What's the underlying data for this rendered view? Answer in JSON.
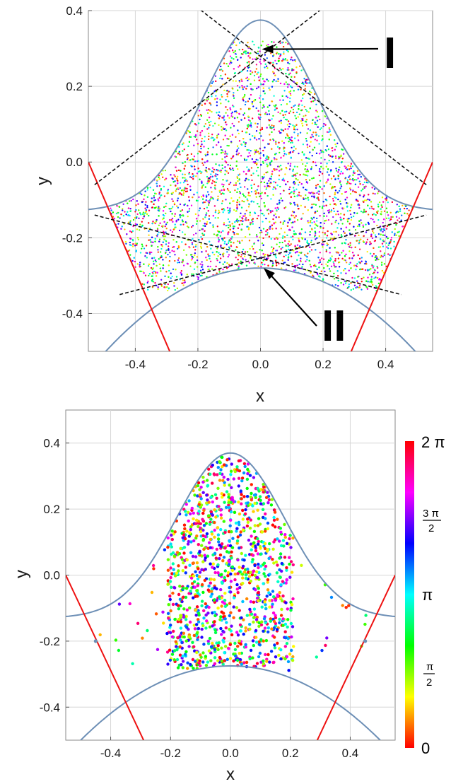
{
  "chart_data": [
    {
      "type": "scatter",
      "title": "",
      "xlabel": "x",
      "ylabel": "y",
      "xlim": [
        -0.55,
        0.55
      ],
      "ylim": [
        -0.5,
        0.4
      ],
      "grid": true,
      "xticks": [
        "-0.4",
        "-0.2",
        "0.0",
        "0.2",
        "0.4"
      ],
      "yticks": [
        "-0.4",
        "-0.2",
        "0.0",
        "0.2",
        "0.4"
      ],
      "xtick_values": [
        -0.4,
        -0.2,
        0.0,
        0.2,
        0.4
      ],
      "ytick_values": [
        -0.4,
        -0.2,
        0.0,
        0.2,
        0.4
      ],
      "point_fill": "uniform dense cloud, hue = phase 0..2π",
      "boundary_upper": {
        "peak": [
          0.0,
          0.375
        ],
        "description": "bell-shaped blue curve"
      },
      "boundary_lower": {
        "trough": [
          0.0,
          -0.28
        ],
        "description": "inverted bell blue curve"
      },
      "red_lines": [
        {
          "points": [
            [
              -0.55,
              0.0
            ],
            [
              -0.29,
              -0.5
            ]
          ]
        },
        {
          "points": [
            [
              0.55,
              0.0
            ],
            [
              0.29,
              -0.5
            ]
          ]
        }
      ],
      "dashed_lines": [
        {
          "points": [
            [
              -0.22,
              0.42
            ],
            [
              0.53,
              -0.06
            ]
          ]
        },
        {
          "points": [
            [
              -0.53,
              -0.06
            ],
            [
              0.22,
              0.42
            ]
          ]
        },
        {
          "points": [
            [
              -0.53,
              -0.14
            ],
            [
              0.45,
              -0.35
            ]
          ]
        },
        {
          "points": [
            [
              -0.45,
              -0.35
            ],
            [
              0.53,
              -0.14
            ]
          ]
        }
      ],
      "annotations": [
        {
          "text": "I",
          "arrow_to": [
            0.0,
            0.3
          ]
        },
        {
          "text": "II",
          "arrow_to": [
            0.01,
            -0.28
          ]
        }
      ]
    },
    {
      "type": "scatter",
      "title": "",
      "xlabel": "x",
      "ylabel": "y",
      "xlim": [
        -0.55,
        0.55
      ],
      "ylim": [
        -0.5,
        0.5
      ],
      "grid": true,
      "xticks": [
        "-0.4",
        "-0.2",
        "0.0",
        "0.2",
        "0.4"
      ],
      "yticks": [
        "-0.4",
        "-0.2",
        "0.0",
        "0.2",
        "0.4"
      ],
      "xtick_values": [
        -0.4,
        -0.2,
        0.0,
        0.2,
        0.4
      ],
      "ytick_values": [
        -0.4,
        -0.2,
        0.0,
        0.2,
        0.4
      ],
      "point_fill": "sparse cloud concentrated near x=0, hue = phase 0..2π",
      "boundary_upper": {
        "peak": [
          0.0,
          0.37
        ],
        "description": "bell-shaped blue curve"
      },
      "boundary_lower": {
        "trough": [
          0.0,
          -0.275
        ],
        "description": "inverted bell blue curve"
      },
      "red_lines": [
        {
          "points": [
            [
              -0.55,
              0.0
            ],
            [
              -0.29,
              -0.5
            ]
          ]
        },
        {
          "points": [
            [
              0.55,
              0.0
            ],
            [
              0.29,
              -0.5
            ]
          ]
        }
      ],
      "marked_points": [
        [
          -0.45,
          -0.2
        ],
        [
          0.45,
          -0.2
        ]
      ],
      "colorbar": {
        "label_top": "2 π",
        "label_3pi2_num": "3 π",
        "label_3pi2_den": "2",
        "label_pi": "π",
        "label_pi2_num": "π",
        "label_pi2_den": "2",
        "label_bottom": "0",
        "range": [
          0,
          6.2832
        ],
        "colors": [
          "#ff0000",
          "#ffff00",
          "#00ff00",
          "#00ffff",
          "#0000ff",
          "#ff00ff",
          "#ff0000"
        ]
      }
    }
  ],
  "colors": {
    "boundary": "#6d8fb6",
    "red_line": "#ee1111",
    "dashed": "#111111",
    "grid": "#d6d6d6",
    "frame": "#8a8a8a"
  }
}
